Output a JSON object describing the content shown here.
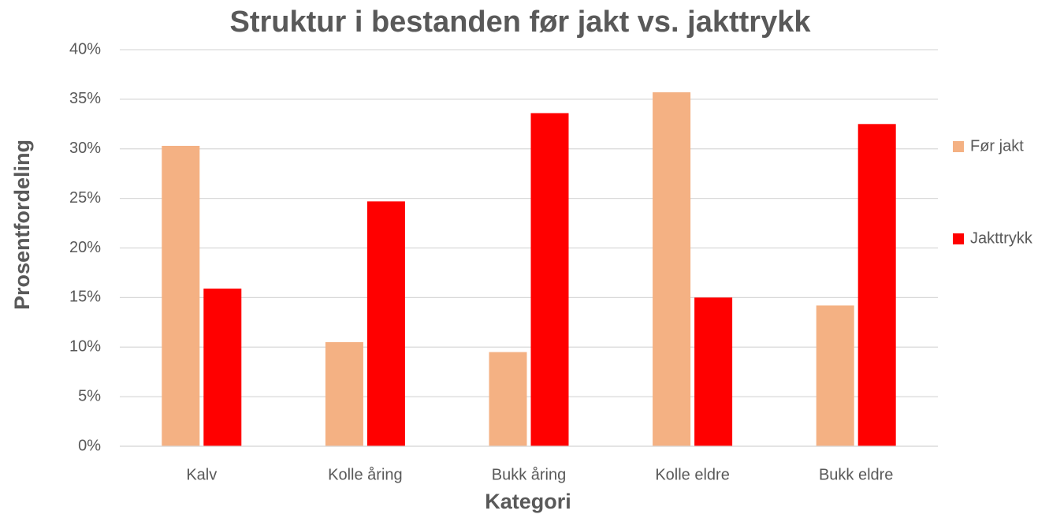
{
  "chart_data": {
    "type": "bar",
    "title": "Struktur i bestanden før jakt vs. jakttrykk",
    "x_label": "Kategori",
    "y_label": "Prosentfordeling",
    "categories": [
      "Kalv",
      "Kolle åring",
      "Bukk åring",
      "Kolle eldre",
      "Bukk eldre"
    ],
    "series": [
      {
        "name": "Før jakt",
        "color": "#f4b183",
        "values": [
          30.3,
          10.5,
          9.5,
          35.7,
          14.2
        ]
      },
      {
        "name": "Jakttrykk",
        "color": "#ff0000",
        "values": [
          15.9,
          24.7,
          33.6,
          15.0,
          32.5
        ]
      }
    ],
    "ylim": [
      0,
      40
    ],
    "yticks": [
      {
        "value": 0,
        "label": "0%"
      },
      {
        "value": 5,
        "label": "5%"
      },
      {
        "value": 10,
        "label": "10%"
      },
      {
        "value": 15,
        "label": "15%"
      },
      {
        "value": 20,
        "label": "20%"
      },
      {
        "value": 25,
        "label": "25%"
      },
      {
        "value": 30,
        "label": "30%"
      },
      {
        "value": 35,
        "label": "35%"
      },
      {
        "value": 40,
        "label": "40%"
      }
    ],
    "grid": true,
    "legend": "right"
  }
}
